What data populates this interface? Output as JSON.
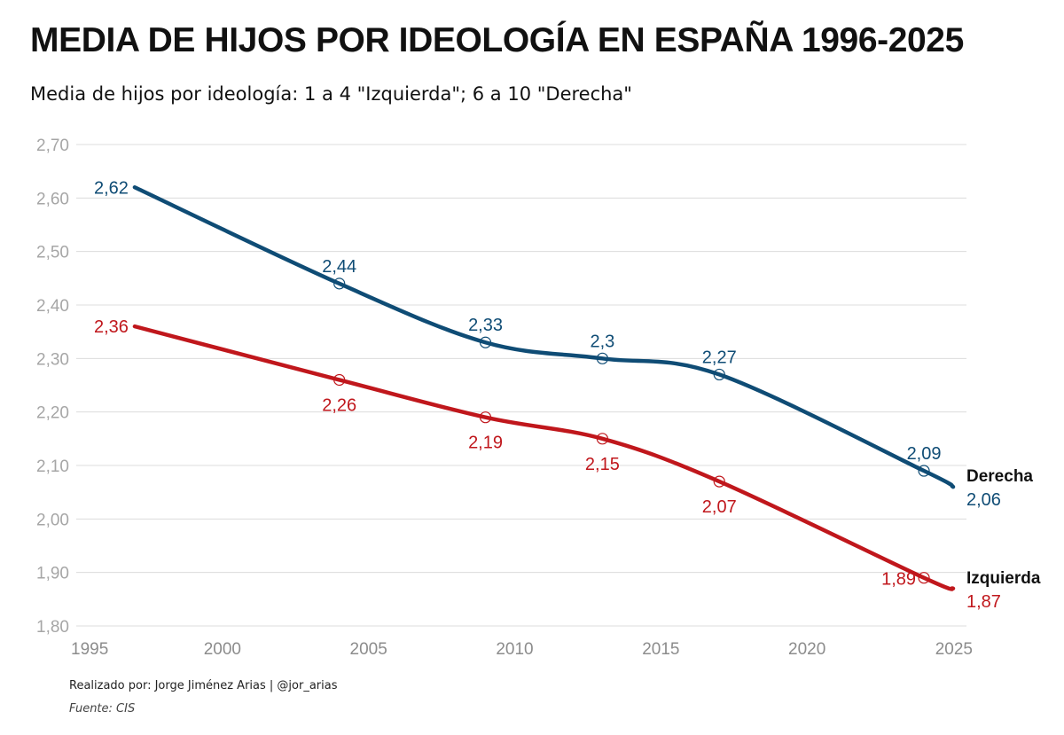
{
  "title": "MEDIA DE HIJOS POR IDEOLOGÍA EN ESPAÑA 1996-2025",
  "subtitle": "Media de hijos por ideología: 1 a 4 \"Izquierda\"; 6 a 10 \"Derecha\"",
  "credit": "Realizado por: Jorge Jiménez Arias | @jor_arias",
  "source": "Fuente: CIS",
  "chart_data": {
    "type": "line",
    "title": "MEDIA DE HIJOS POR IDEOLOGÍA EN ESPAÑA 1996-2025",
    "subtitle": "Media de hijos por ideología: 1 a 4 \"Izquierda\"; 6 a 10 \"Derecha\"",
    "xlabel": "",
    "ylabel": "",
    "xlim": [
      1995,
      2025
    ],
    "ylim": [
      1.8,
      2.7
    ],
    "x_ticks": [
      1995,
      2000,
      2005,
      2010,
      2015,
      2020,
      2025
    ],
    "x_tick_labels": [
      "1995",
      "2000",
      "2005",
      "2010",
      "2015",
      "2020",
      "2025"
    ],
    "y_ticks": [
      1.8,
      1.9,
      2.0,
      2.1,
      2.2,
      2.3,
      2.4,
      2.5,
      2.6,
      2.7
    ],
    "y_tick_labels": [
      "1,80",
      "1,90",
      "2,00",
      "2,10",
      "2,20",
      "2,30",
      "2,40",
      "2,50",
      "2,60",
      "2,70"
    ],
    "grid": "horizontal",
    "legend": "end-of-line labels",
    "series": [
      {
        "name": "Derecha",
        "color": "#0f4c75",
        "points": [
          {
            "x": 1997,
            "y": 2.62,
            "label": "2,62"
          },
          {
            "x": 2004,
            "y": 2.44,
            "label": "2,44"
          },
          {
            "x": 2009,
            "y": 2.33,
            "label": "2,33"
          },
          {
            "x": 2013,
            "y": 2.3,
            "label": "2,3"
          },
          {
            "x": 2017,
            "y": 2.27,
            "label": "2,27"
          },
          {
            "x": 2024,
            "y": 2.09,
            "label": "2,09"
          },
          {
            "x": 2025,
            "y": 2.06,
            "label": "2,06"
          }
        ]
      },
      {
        "name": "Izquierda",
        "color": "#c0171c",
        "points": [
          {
            "x": 1997,
            "y": 2.36,
            "label": "2,36"
          },
          {
            "x": 2004,
            "y": 2.26,
            "label": "2,26"
          },
          {
            "x": 2009,
            "y": 2.19,
            "label": "2,19"
          },
          {
            "x": 2013,
            "y": 2.15,
            "label": "2,15"
          },
          {
            "x": 2017,
            "y": 2.07,
            "label": "2,07"
          },
          {
            "x": 2024,
            "y": 1.89,
            "label": "1,89"
          },
          {
            "x": 2025,
            "y": 1.87,
            "label": "1,87"
          }
        ]
      }
    ]
  }
}
